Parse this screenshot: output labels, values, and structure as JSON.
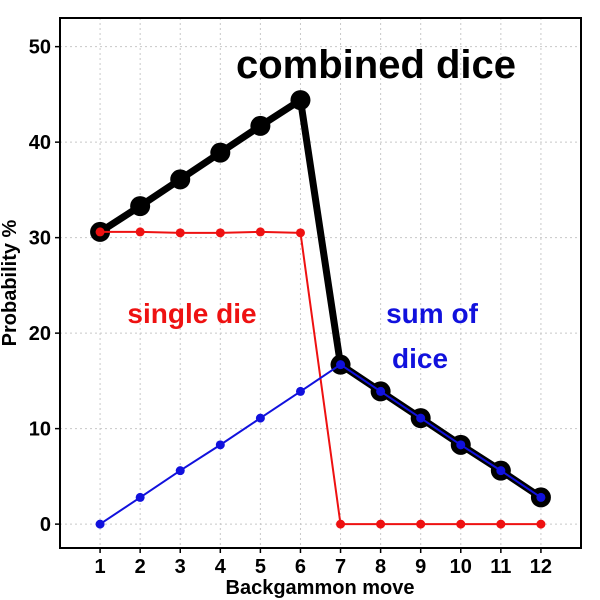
{
  "chart_data": {
    "type": "line",
    "xlabel": "Backgammon move",
    "ylabel": "Probability %",
    "xlim": [
      0,
      13
    ],
    "ylim": [
      -2.5,
      53
    ],
    "x_ticks": [
      1,
      2,
      3,
      4,
      5,
      6,
      7,
      8,
      9,
      10,
      11,
      12
    ],
    "y_ticks": [
      0,
      10,
      20,
      30,
      40,
      50
    ],
    "grid": true,
    "series": [
      {
        "name": "combined dice",
        "color": "#000000",
        "x": [
          1,
          2,
          3,
          4,
          5,
          6,
          7,
          8,
          9,
          10,
          11,
          12
        ],
        "values": [
          30.6,
          33.3,
          36.1,
          38.9,
          41.7,
          44.4,
          16.7,
          13.9,
          11.1,
          8.3,
          5.6,
          2.8
        ]
      },
      {
        "name": "single die",
        "color": "#ee1111",
        "x": [
          1,
          2,
          3,
          4,
          5,
          6,
          7,
          8,
          9,
          10,
          11,
          12
        ],
        "values": [
          30.6,
          30.6,
          30.5,
          30.5,
          30.6,
          30.5,
          0,
          0,
          0,
          0,
          0,
          0
        ]
      },
      {
        "name": "sum of dice",
        "color": "#1111dd",
        "x": [
          1,
          2,
          3,
          4,
          5,
          6,
          7,
          8,
          9,
          10,
          11,
          12
        ],
        "values": [
          0,
          2.8,
          5.6,
          8.3,
          11.1,
          13.9,
          16.7,
          13.9,
          11.1,
          8.3,
          5.6,
          2.8
        ]
      }
    ],
    "annotations": {
      "combined": "combined dice",
      "single": "single die",
      "sum_line1": "sum of",
      "sum_line2": "dice"
    }
  }
}
